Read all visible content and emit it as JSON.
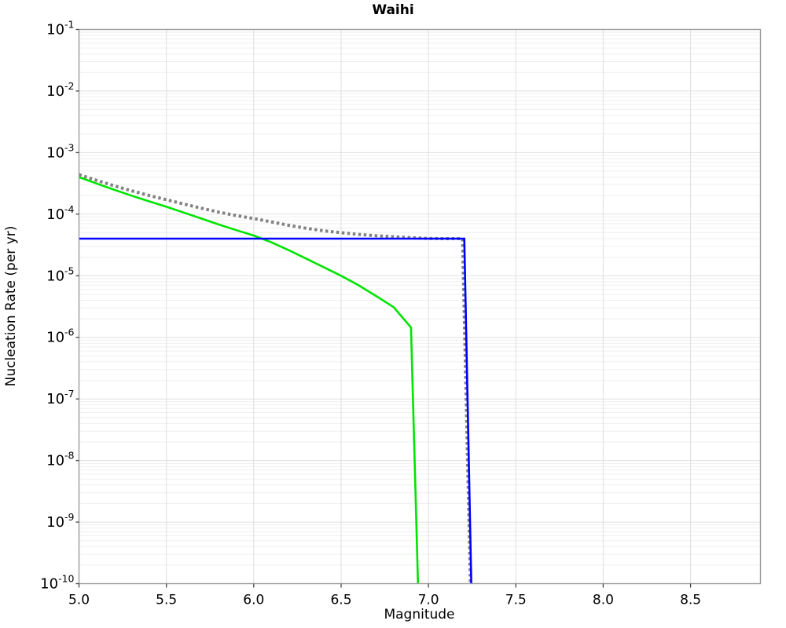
{
  "chart_data": {
    "type": "line",
    "title": "Waihi",
    "xlabel": "Magnitude",
    "ylabel": "Nucleation Rate (per yr)",
    "xlim": [
      5.0,
      8.9
    ],
    "ylim": [
      1e-10,
      0.1
    ],
    "y_scale": "log",
    "grid": {
      "show_minor_log": true,
      "major_color": "#dfdfdf",
      "minor_color": "#efefef"
    },
    "axis_color": "#9b9b9b",
    "tick_color": "#444444",
    "x_major_ticks": [
      {
        "value": 5.0,
        "label": "5.0"
      },
      {
        "value": 5.5,
        "label": "5.5"
      },
      {
        "value": 6.0,
        "label": "6.0"
      },
      {
        "value": 6.5,
        "label": "6.5"
      },
      {
        "value": 7.0,
        "label": "7.0"
      },
      {
        "value": 7.5,
        "label": "7.5"
      },
      {
        "value": 8.0,
        "label": "8.0"
      },
      {
        "value": 8.5,
        "label": "8.5"
      }
    ],
    "y_major_ticks": [
      {
        "exponent": -1
      },
      {
        "exponent": -2
      },
      {
        "exponent": -3
      },
      {
        "exponent": -4
      },
      {
        "exponent": -5
      },
      {
        "exponent": -6
      },
      {
        "exponent": -7
      },
      {
        "exponent": -8
      },
      {
        "exponent": -9
      },
      {
        "exponent": -10
      }
    ],
    "series": [
      {
        "name": "green-solid-curve",
        "color": "#00e400",
        "style": "solid",
        "width": 2.6,
        "points": [
          [
            5.0,
            0.0004
          ],
          [
            5.1,
            0.000315
          ],
          [
            5.2,
            0.00025
          ],
          [
            5.3,
            0.0002
          ],
          [
            5.4,
            0.000162
          ],
          [
            5.5,
            0.000132
          ],
          [
            5.6,
            0.000106
          ],
          [
            5.7,
            8.5e-05
          ],
          [
            5.8,
            6.8e-05
          ],
          [
            5.9,
            5.5e-05
          ],
          [
            6.0,
            4.5e-05
          ],
          [
            6.1,
            3.5e-05
          ],
          [
            6.2,
            2.6e-05
          ],
          [
            6.3,
            1.9e-05
          ],
          [
            6.4,
            1.38e-05
          ],
          [
            6.5,
            1e-05
          ],
          [
            6.6,
            7e-06
          ],
          [
            6.7,
            4.7e-06
          ],
          [
            6.8,
            3.1e-06
          ],
          [
            6.9,
            1.45e-06
          ],
          [
            6.94,
            1e-10
          ]
        ]
      },
      {
        "name": "gray-dotted-total",
        "color": "#828282",
        "style": "dotted",
        "width": 4,
        "points": [
          [
            5.0,
            0.00044
          ],
          [
            5.1,
            0.000355
          ],
          [
            5.2,
            0.00029
          ],
          [
            5.3,
            0.00024
          ],
          [
            5.4,
            0.000202
          ],
          [
            5.5,
            0.000172
          ],
          [
            5.6,
            0.000146
          ],
          [
            5.7,
            0.000125
          ],
          [
            5.8,
            0.000108
          ],
          [
            5.9,
            9.5e-05
          ],
          [
            6.0,
            8.5e-05
          ],
          [
            6.1,
            7.5e-05
          ],
          [
            6.2,
            6.6e-05
          ],
          [
            6.3,
            5.9e-05
          ],
          [
            6.4,
            5.38e-05
          ],
          [
            6.5,
            5e-05
          ],
          [
            6.6,
            4.7e-05
          ],
          [
            6.7,
            4.47e-05
          ],
          [
            6.8,
            4.31e-05
          ],
          [
            6.9,
            4.15e-05
          ],
          [
            7.0,
            4.03e-05
          ],
          [
            7.1,
            4.01e-05
          ],
          [
            7.195,
            4e-05
          ],
          [
            7.24,
            1e-10
          ]
        ]
      },
      {
        "name": "blue-solid-line",
        "color": "#0000ff",
        "style": "solid",
        "width": 2.6,
        "points": [
          [
            5.0,
            4e-05
          ],
          [
            7.205,
            4e-05
          ],
          [
            7.245,
            1e-10
          ]
        ]
      }
    ]
  }
}
